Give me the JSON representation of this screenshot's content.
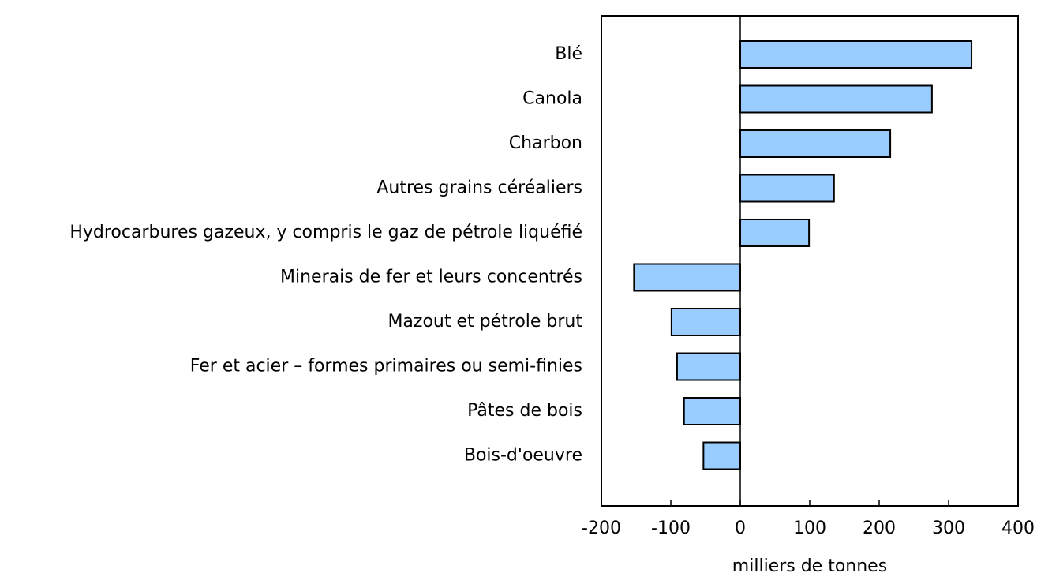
{
  "chart_data": {
    "type": "bar",
    "orientation": "horizontal",
    "categories": [
      "Blé",
      "Canola",
      "Charbon",
      "Autres grains céréaliers",
      "Hydrocarbures gazeux, y compris le gaz de pétrole liquéfié",
      "Minerais de fer et leurs concentrés",
      "Mazout et pétrole brut",
      "Fer et acier – formes primaires ou semi-finies",
      "Pâtes de bois",
      "Bois-d'oeuvre"
    ],
    "values": [
      333,
      276,
      216,
      135,
      99,
      -153,
      -99,
      -91,
      -81,
      -53
    ],
    "color": "#99ccff",
    "xlim": [
      -200,
      400
    ],
    "xticks": [
      -200,
      -100,
      0,
      100,
      200,
      300,
      400
    ],
    "xlabel": "milliers de tonnes"
  }
}
